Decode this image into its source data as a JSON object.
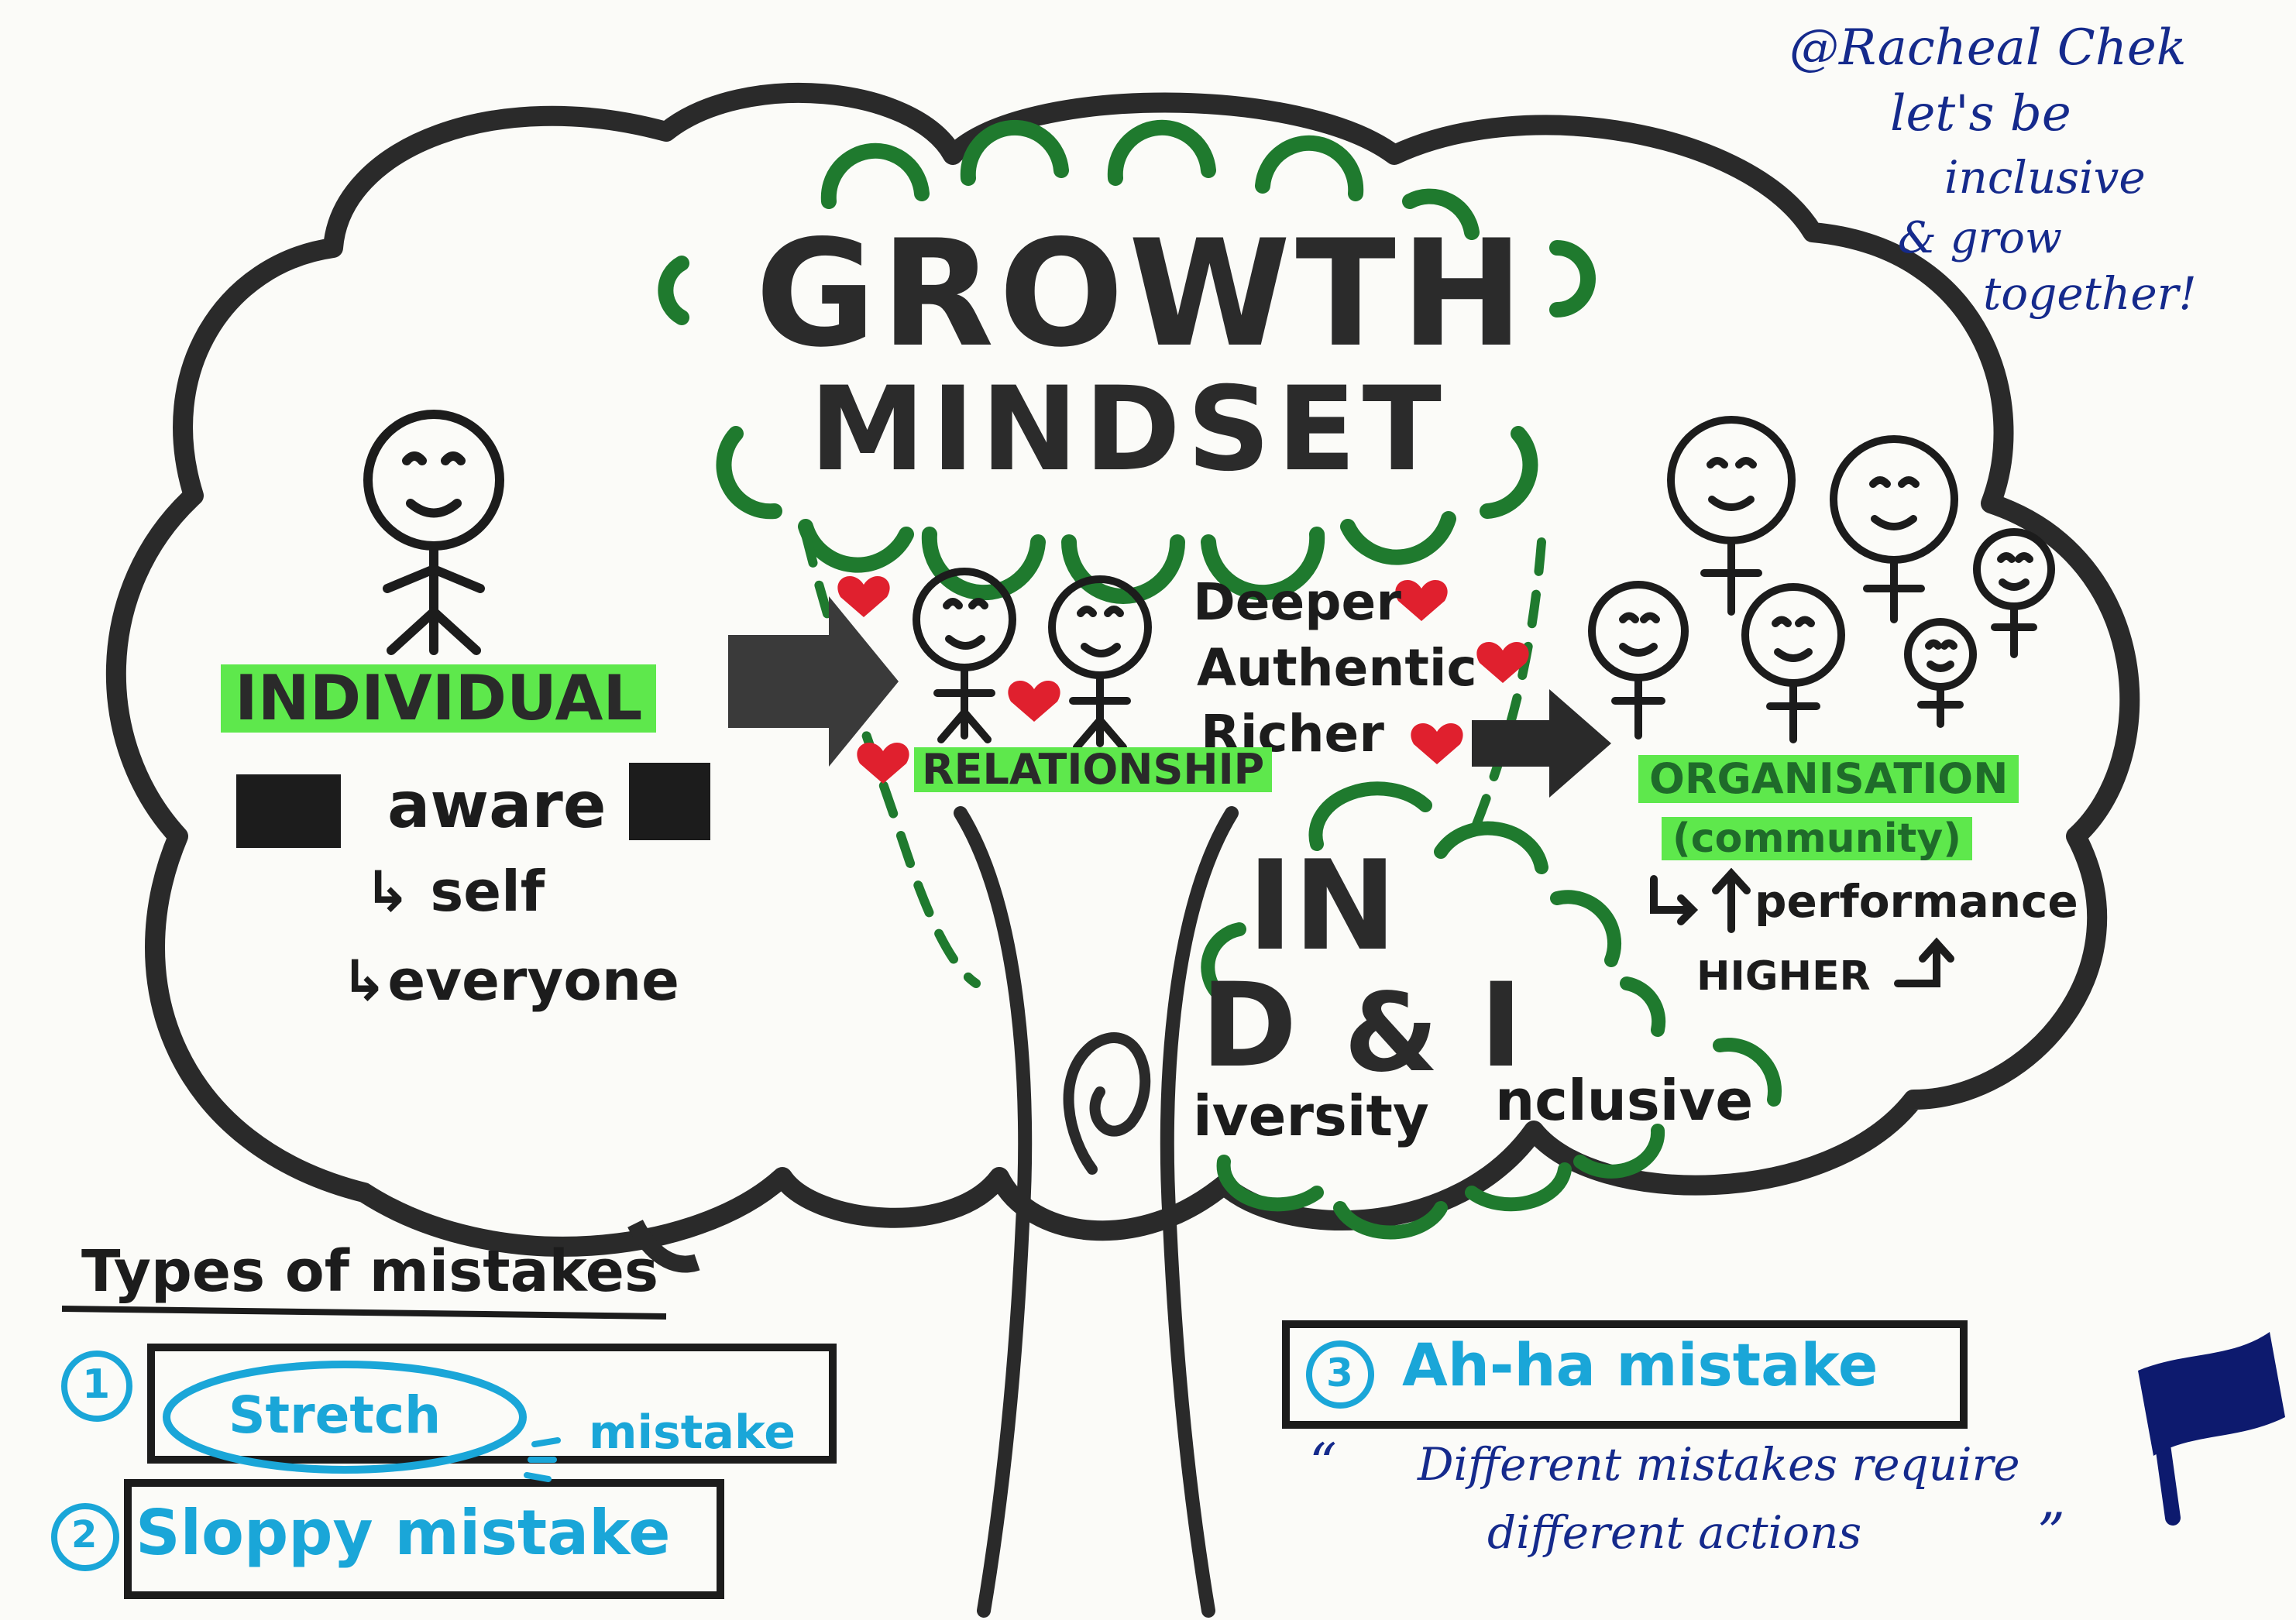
{
  "credit": {
    "author": "@Racheal Chek",
    "line1": "let's be",
    "line2": "inclusive",
    "line3": "& grow",
    "line4": "together!"
  },
  "title": {
    "line1": "GROWTH",
    "line2": "MINDSET"
  },
  "individual": {
    "label": "INDIVIDUAL",
    "aware": "aware",
    "self": "↳ self",
    "everyone": "↳everyone"
  },
  "relationship": {
    "label": "RELATIONSHIP",
    "word1": "Deeper",
    "word2": "Authentic",
    "word3": "Richer"
  },
  "organisation": {
    "label": "ORGANISATION",
    "sub": "(community)",
    "performance": "performance",
    "higher": "HIGHER"
  },
  "dei": {
    "in": "IN",
    "d": "D",
    "amp": "&",
    "i": "I",
    "diversity": "iversity",
    "inclusive": "nclusive"
  },
  "mistakes": {
    "heading": "Types of mistakes",
    "items": [
      {
        "number": "1",
        "label": "Stretch",
        "suffix": "mistake"
      },
      {
        "number": "2",
        "label": "Sloppy mistake"
      },
      {
        "number": "3",
        "label": "Ah-ha mistake"
      }
    ]
  },
  "quote": {
    "open": "“",
    "line1": "Different mistakes require",
    "line2": "different actions",
    "close": "”"
  },
  "colors": {
    "outline": "#2a2a2a",
    "green_accent": "#1f7a2e",
    "highlight": "#5ee84c",
    "heart": "#e0202e",
    "ink_blue": "#152a8c",
    "cyan": "#1aa6d8"
  }
}
